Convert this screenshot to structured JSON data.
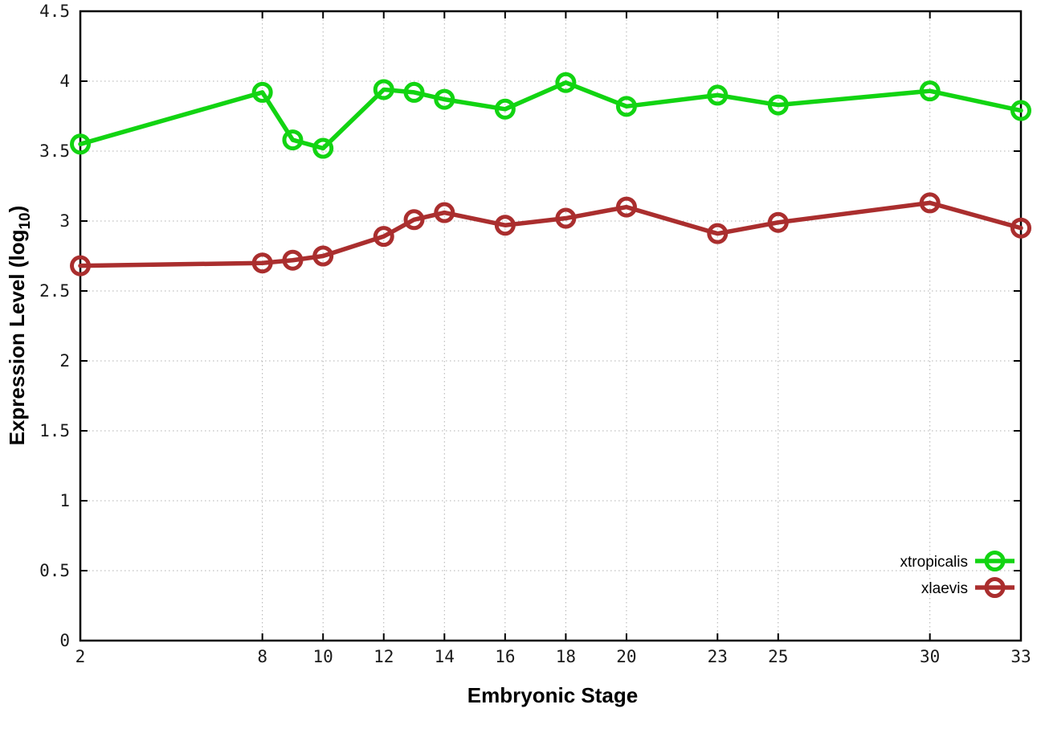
{
  "figure": {
    "xlabel": "Embryonic Stage",
    "ylabel_main": "Expression Level (log",
    "ylabel_sub": "10",
    "ylabel_close": ")",
    "background_color": "#ffffff",
    "border_color": "#000000",
    "grid_color": "#b0b0b0"
  },
  "chart_data": {
    "type": "line",
    "title": "",
    "xlabel": "Embryonic Stage",
    "ylabel": "Expression Level (log10)",
    "x": [
      2,
      8,
      9,
      10,
      12,
      13,
      14,
      16,
      18,
      20,
      23,
      25,
      30,
      33
    ],
    "series": [
      {
        "name": "xtropicalis",
        "color": "#12d412",
        "values": [
          3.55,
          3.92,
          3.58,
          3.52,
          3.94,
          3.92,
          3.87,
          3.8,
          3.99,
          3.82,
          3.9,
          3.83,
          3.93,
          3.79
        ]
      },
      {
        "name": "xlaevis",
        "color": "#aa2e2e",
        "values": [
          2.68,
          2.7,
          2.72,
          2.75,
          2.89,
          3.01,
          3.06,
          2.97,
          3.02,
          3.1,
          2.91,
          2.99,
          3.13,
          2.95
        ]
      }
    ],
    "xlim": [
      2,
      33
    ],
    "ylim": [
      0,
      4.5
    ],
    "xticks": [
      2,
      8,
      10,
      12,
      14,
      16,
      18,
      20,
      23,
      25,
      30,
      33
    ],
    "xtick_labels": [
      "2",
      "8",
      "10",
      "12",
      "14",
      "16",
      "18",
      "20",
      "23",
      "25",
      "30",
      "33"
    ],
    "yticks": [
      0,
      0.5,
      1,
      1.5,
      2,
      2.5,
      3,
      3.5,
      4,
      4.5
    ],
    "ytick_labels": [
      "0",
      "0.5",
      "1",
      "1.5",
      "2",
      "2.5",
      "3",
      "3.5",
      "4",
      "4.5"
    ],
    "grid": true,
    "grid_style": "dotted",
    "marker": "open-circle",
    "legend_position": "bottom-right",
    "legend_entries": [
      "xtropicalis",
      "xlaevis"
    ]
  }
}
